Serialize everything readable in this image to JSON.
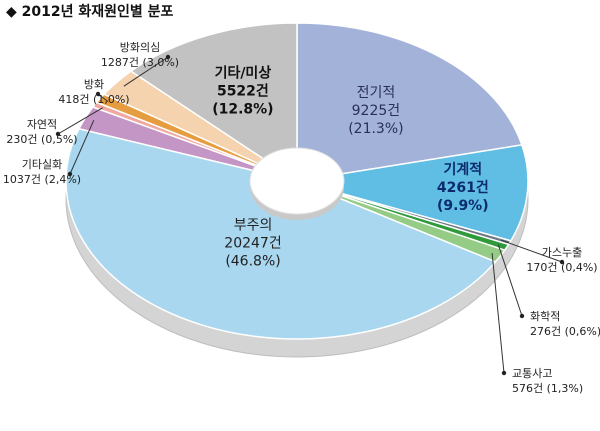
{
  "title": "◆ 2012년 화재원인별 분포",
  "chart_data": {
    "type": "pie",
    "donut": true,
    "title": "◆ 2012년 화재원인별 분포",
    "unit": "건",
    "slices": [
      {
        "label": "전기적",
        "value": 9225,
        "value_text": "9225건",
        "pct": 21.3,
        "pct_text": "(21.3%)",
        "color": "#a3b2d9",
        "label_color": "#2a2f5a"
      },
      {
        "label": "기계적",
        "value": 4261,
        "value_text": "4261건",
        "pct": 9.9,
        "pct_text": "(9.9%)",
        "color": "#60bde3",
        "label_color": "#0b2b6e"
      },
      {
        "label": "가스누출",
        "value": 170,
        "value_text": "170건",
        "pct": 0.4,
        "pct_text": "(0.4%)",
        "color": "#6e7784"
      },
      {
        "label": "화학적",
        "value": 276,
        "value_text": "276건",
        "pct": 0.6,
        "pct_text": "(0.6%)",
        "color": "#2e9a3a"
      },
      {
        "label": "교통사고",
        "value": 576,
        "value_text": "576건",
        "pct": 1.3,
        "pct_text": "(1.3%)",
        "color": "#95cc85"
      },
      {
        "label": "부주의",
        "value": 20247,
        "value_text": "20247건",
        "pct": 46.8,
        "pct_text": "(46.8%)",
        "color": "#a8d7ef",
        "label_color": "#222222"
      },
      {
        "label": "기타실화",
        "value": 1037,
        "value_text": "1037건",
        "pct": 2.4,
        "pct_text": "(2.4%)",
        "color": "#c396c6"
      },
      {
        "label": "자연적",
        "value": 230,
        "value_text": "230건",
        "pct": 0.5,
        "pct_text": "(0.5%)",
        "color": "#f0a8a0"
      },
      {
        "label": "방화",
        "value": 418,
        "value_text": "418건",
        "pct": 1.0,
        "pct_text": "(1.0%)",
        "color": "#e69d3f"
      },
      {
        "label": "방화의심",
        "value": 1287,
        "value_text": "1287건",
        "pct": 3.0,
        "pct_text": "(3.0%)",
        "color": "#f4d3ae"
      },
      {
        "label": "기타/미상",
        "value": 5522,
        "value_text": "5522건",
        "pct": 12.8,
        "pct_text": "(12.8%)",
        "color": "#c2c2c2",
        "label_color": "#111111"
      }
    ]
  }
}
